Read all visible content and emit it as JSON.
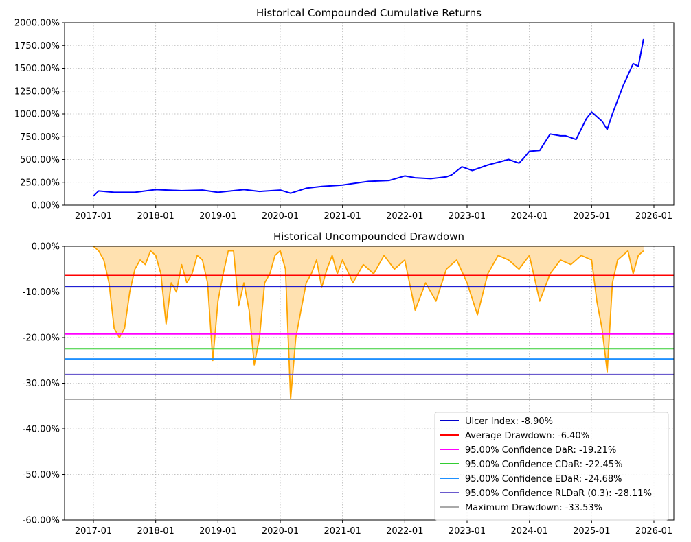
{
  "chart_data": [
    {
      "type": "line",
      "title": "Historical Compounded Cumulative Returns",
      "xlabel": "",
      "ylabel": "",
      "ylim": [
        0,
        2000
      ],
      "y_unit": "%",
      "grid": true,
      "x_tick_labels": [
        "2017-01",
        "2018-01",
        "2019-01",
        "2020-01",
        "2021-01",
        "2022-01",
        "2023-01",
        "2024-01",
        "2025-01",
        "2026-01"
      ],
      "y_tick_labels": [
        "0.00%",
        "250.00%",
        "500.00%",
        "750.00%",
        "1000.00%",
        "1250.00%",
        "1500.00%",
        "1750.00%",
        "2000.00%"
      ],
      "series": [
        {
          "color": "#0000ff",
          "x": [
            "2017-01",
            "2017-02",
            "2017-05",
            "2017-09",
            "2018-01",
            "2018-06",
            "2018-10",
            "2019-01",
            "2019-06",
            "2019-09",
            "2020-01",
            "2020-03",
            "2020-06",
            "2020-09",
            "2021-01",
            "2021-06",
            "2021-10",
            "2022-01",
            "2022-03",
            "2022-06",
            "2022-09",
            "2022-10",
            "2022-12",
            "2023-02",
            "2023-05",
            "2023-09",
            "2023-11",
            "2023-12",
            "2024-01",
            "2024-03",
            "2024-05",
            "2024-07",
            "2024-08",
            "2024-10",
            "2024-12",
            "2025-01",
            "2025-03",
            "2025-04",
            "2025-05",
            "2025-07",
            "2025-09",
            "2025-10",
            "2025-11"
          ],
          "values": [
            100,
            155,
            140,
            140,
            170,
            158,
            165,
            140,
            170,
            150,
            165,
            130,
            185,
            205,
            220,
            260,
            270,
            320,
            300,
            290,
            310,
            330,
            420,
            380,
            440,
            500,
            460,
            520,
            590,
            600,
            780,
            760,
            760,
            720,
            950,
            1020,
            920,
            830,
            1000,
            1300,
            1550,
            1520,
            1820
          ]
        }
      ]
    },
    {
      "type": "area",
      "title": "Historical Uncompounded Drawdown",
      "xlabel": "",
      "ylabel": "",
      "ylim": [
        -60,
        0
      ],
      "y_unit": "%",
      "grid": true,
      "legend_position": "bottom-right",
      "x_tick_labels": [
        "2017-01",
        "2018-01",
        "2019-01",
        "2020-01",
        "2021-01",
        "2022-01",
        "2023-01",
        "2024-01",
        "2025-01",
        "2026-01"
      ],
      "y_tick_labels": [
        "0.00%",
        "-10.00%",
        "-20.00%",
        "-30.00%",
        "-40.00%",
        "-50.00%",
        "-60.00%"
      ],
      "drawdown": {
        "color": "#ffa500",
        "fill": "#ffe1b0",
        "x": [
          "2017-01",
          "2017-02",
          "2017-03",
          "2017-04",
          "2017-05",
          "2017-06",
          "2017-07",
          "2017-08",
          "2017-09",
          "2017-10",
          "2017-11",
          "2017-12",
          "2018-01",
          "2018-02",
          "2018-03",
          "2018-04",
          "2018-05",
          "2018-06",
          "2018-07",
          "2018-08",
          "2018-09",
          "2018-10",
          "2018-11",
          "2018-12",
          "2019-01",
          "2019-02",
          "2019-03",
          "2019-04",
          "2019-05",
          "2019-06",
          "2019-07",
          "2019-08",
          "2019-09",
          "2019-10",
          "2019-11",
          "2019-12",
          "2020-01",
          "2020-02",
          "2020-03",
          "2020-04",
          "2020-05",
          "2020-06",
          "2020-07",
          "2020-08",
          "2020-09",
          "2020-10",
          "2020-11",
          "2020-12",
          "2021-01",
          "2021-03",
          "2021-05",
          "2021-07",
          "2021-09",
          "2021-11",
          "2022-01",
          "2022-03",
          "2022-05",
          "2022-07",
          "2022-09",
          "2022-11",
          "2023-01",
          "2023-03",
          "2023-05",
          "2023-07",
          "2023-09",
          "2023-11",
          "2024-01",
          "2024-03",
          "2024-05",
          "2024-07",
          "2024-09",
          "2024-11",
          "2025-01",
          "2025-02",
          "2025-03",
          "2025-04",
          "2025-05",
          "2025-06",
          "2025-07",
          "2025-08",
          "2025-09",
          "2025-10",
          "2025-11"
        ],
        "values": [
          0,
          -1,
          -3,
          -8,
          -18,
          -20,
          -18,
          -10,
          -5,
          -3,
          -4,
          -1,
          -2,
          -6,
          -17,
          -8,
          -10,
          -4,
          -8,
          -6,
          -2,
          -3,
          -8,
          -25,
          -12,
          -6,
          -1,
          -1,
          -13,
          -8,
          -14,
          -26,
          -20,
          -8,
          -6,
          -2,
          -1,
          -5,
          -33.5,
          -20,
          -14,
          -8,
          -6,
          -3,
          -9,
          -5,
          -2,
          -6,
          -3,
          -8,
          -4,
          -6,
          -2,
          -5,
          -3,
          -14,
          -8,
          -12,
          -5,
          -3,
          -8,
          -15,
          -6,
          -2,
          -3,
          -5,
          -2,
          -12,
          -6,
          -3,
          -4,
          -2,
          -3,
          -12,
          -18,
          -27.5,
          -8,
          -3,
          -2,
          -1,
          -6,
          -2,
          -1
        ]
      },
      "reference_lines": [
        {
          "label": "Ulcer Index: -8.90%",
          "value": -8.9,
          "color": "#0000cd"
        },
        {
          "label": "Average Drawdown: -6.40%",
          "value": -6.4,
          "color": "#ff0000"
        },
        {
          "label": "95.00% Confidence DaR: -19.21%",
          "value": -19.21,
          "color": "#ff00ff"
        },
        {
          "label": "95.00% Confidence CDaR: -22.45%",
          "value": -22.45,
          "color": "#32cd32"
        },
        {
          "label": "95.00% Confidence EDaR: -24.68%",
          "value": -24.68,
          "color": "#1e90ff"
        },
        {
          "label": "95.00% Confidence RLDaR (0.3): -28.11%",
          "value": -28.11,
          "color": "#6a5acd"
        },
        {
          "label": "Maximum Drawdown: -33.53%",
          "value": -33.53,
          "color": "#a9a9a9"
        }
      ]
    }
  ]
}
